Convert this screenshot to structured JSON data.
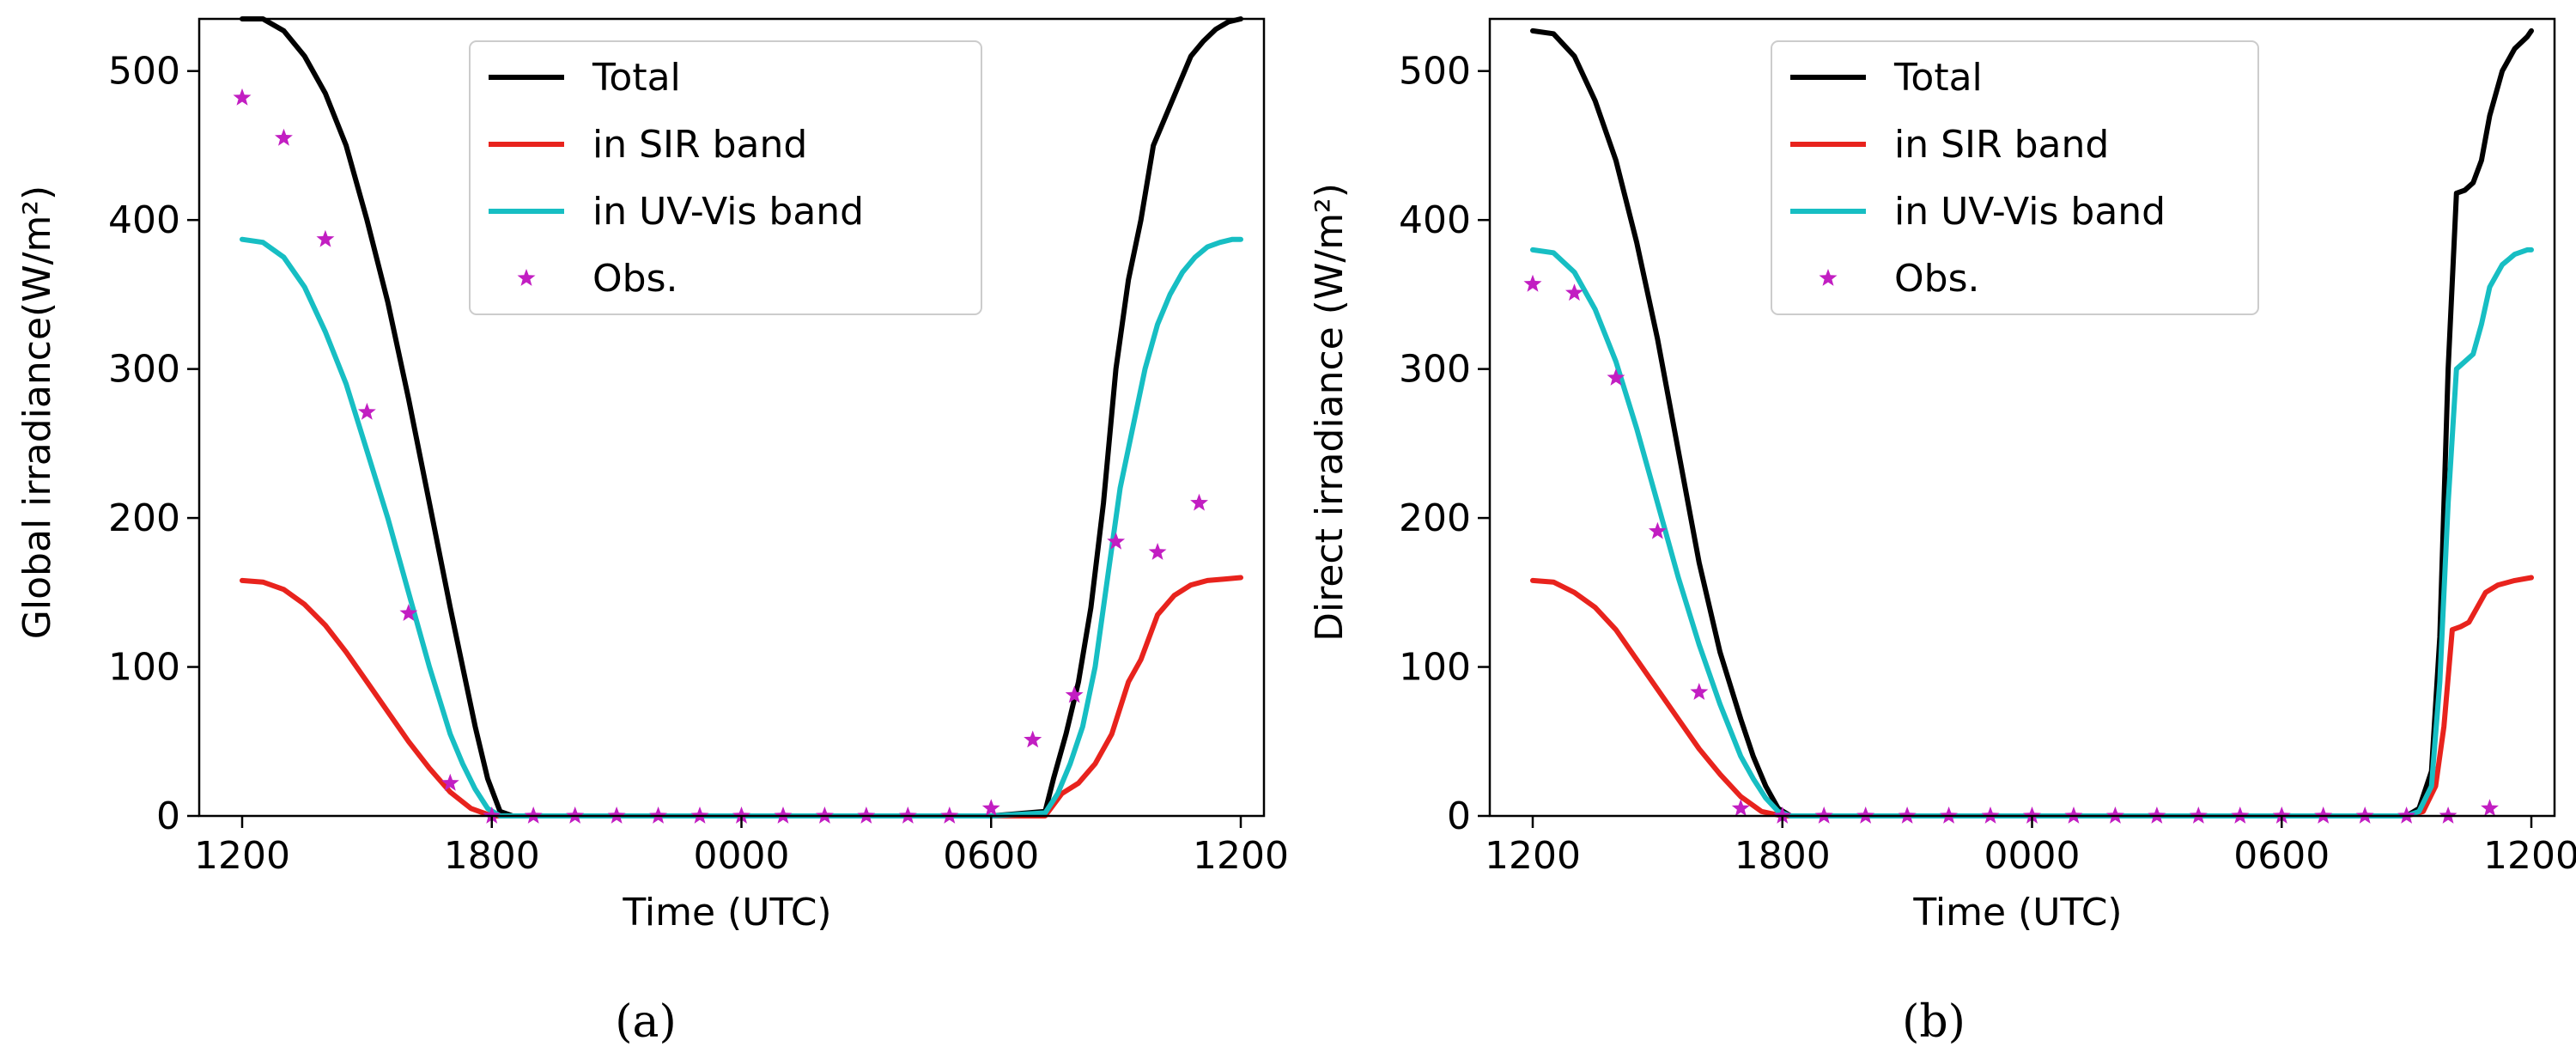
{
  "chart_data": [
    {
      "type": "line",
      "panel": "a",
      "panel_label_text": "(a)",
      "xlabel": "Time (UTC)",
      "ylabel": "Global irradiance(W/m²)",
      "xlim": [
        0,
        24
      ],
      "ylim": [
        0,
        535
      ],
      "xticks": [
        {
          "pos": 0,
          "label": "1200"
        },
        {
          "pos": 6,
          "label": "1800"
        },
        {
          "pos": 12,
          "label": "0000"
        },
        {
          "pos": 18,
          "label": "0600"
        },
        {
          "pos": 24,
          "label": "1200"
        }
      ],
      "yticks": [
        0,
        100,
        200,
        300,
        400,
        500
      ],
      "series": [
        {
          "name": "Total",
          "color": "#000000",
          "kind": "line",
          "x": [
            0,
            0.5,
            1,
            1.5,
            2,
            2.5,
            3,
            3.5,
            4,
            4.5,
            5,
            5.3,
            5.6,
            5.9,
            6.2,
            6.5,
            12,
            18,
            19.3,
            19.5,
            19.8,
            20.1,
            20.4,
            20.7,
            21.0,
            21.3,
            21.6,
            21.9,
            22.2,
            22.5,
            22.8,
            23.1,
            23.4,
            23.7,
            24
          ],
          "values": [
            535,
            535,
            527,
            510,
            485,
            450,
            400,
            345,
            280,
            210,
            140,
            100,
            60,
            25,
            3,
            0,
            0,
            0,
            3,
            25,
            55,
            90,
            140,
            210,
            300,
            360,
            400,
            450,
            470,
            490,
            510,
            520,
            528,
            533,
            535
          ]
        },
        {
          "name": "in SIR band",
          "color": "#e8231d",
          "kind": "line",
          "x": [
            0,
            0.5,
            1,
            1.5,
            2,
            2.5,
            3,
            3.5,
            4,
            4.5,
            5,
            5.5,
            6,
            6.3,
            12,
            18,
            19.3,
            19.7,
            20.1,
            20.5,
            20.9,
            21.3,
            21.6,
            22.0,
            22.4,
            22.8,
            23.2,
            23.6,
            24
          ],
          "values": [
            158,
            157,
            152,
            142,
            128,
            110,
            90,
            70,
            50,
            32,
            16,
            5,
            0,
            0,
            0,
            0,
            0,
            15,
            22,
            35,
            55,
            90,
            105,
            135,
            148,
            155,
            158,
            159,
            160
          ]
        },
        {
          "name": "in UV-Vis band",
          "color": "#17bec3",
          "kind": "line",
          "x": [
            0,
            0.5,
            1,
            1.5,
            2,
            2.5,
            3,
            3.5,
            4,
            4.5,
            5,
            5.3,
            5.6,
            5.9,
            6.2,
            6.5,
            12,
            18,
            19.3,
            19.6,
            19.9,
            20.2,
            20.5,
            20.8,
            21.1,
            21.4,
            21.7,
            22.0,
            22.3,
            22.6,
            22.9,
            23.2,
            23.5,
            23.8,
            24
          ],
          "values": [
            387,
            385,
            375,
            355,
            325,
            290,
            245,
            200,
            150,
            100,
            55,
            35,
            18,
            5,
            0,
            0,
            0,
            0,
            2,
            15,
            35,
            60,
            100,
            160,
            220,
            260,
            300,
            330,
            350,
            365,
            375,
            382,
            385,
            387,
            387
          ]
        },
        {
          "name": "Obs.",
          "color": "#c21ec2",
          "kind": "scatter",
          "x": [
            0,
            1,
            2,
            3,
            4,
            5,
            6,
            7,
            8,
            9,
            10,
            11,
            12,
            13,
            14,
            15,
            16,
            17,
            18,
            19,
            20,
            21,
            22,
            23
          ],
          "values": [
            482,
            455,
            387,
            271,
            136,
            22,
            0,
            0,
            0,
            0,
            0,
            0,
            0,
            0,
            0,
            0,
            0,
            0,
            5,
            51,
            81,
            184,
            177,
            210
          ]
        }
      ]
    },
    {
      "type": "line",
      "panel": "b",
      "panel_label_text": "(b)",
      "xlabel": "Time (UTC)",
      "ylabel": "Direct irradiance (W/m²)",
      "xlim": [
        0,
        24
      ],
      "ylim": [
        0,
        535
      ],
      "xticks": [
        {
          "pos": 0,
          "label": "1200"
        },
        {
          "pos": 6,
          "label": "1800"
        },
        {
          "pos": 12,
          "label": "0000"
        },
        {
          "pos": 18,
          "label": "0600"
        },
        {
          "pos": 24,
          "label": "1200"
        }
      ],
      "yticks": [
        0,
        100,
        200,
        300,
        400,
        500
      ],
      "series": [
        {
          "name": "Total",
          "color": "#000000",
          "kind": "line",
          "x": [
            0,
            0.5,
            1,
            1.5,
            2,
            2.5,
            3,
            3.5,
            4,
            4.5,
            5,
            5.3,
            5.6,
            5.9,
            6.2,
            6.5,
            12,
            21.0,
            21.3,
            21.6,
            21.8,
            22.0,
            22.2,
            22.4,
            22.6,
            22.8,
            23.0,
            23.3,
            23.6,
            23.9,
            24
          ],
          "values": [
            527,
            525,
            510,
            480,
            440,
            385,
            320,
            245,
            170,
            110,
            65,
            40,
            20,
            5,
            0,
            0,
            0,
            0,
            5,
            30,
            120,
            300,
            418,
            420,
            425,
            440,
            470,
            500,
            515,
            523,
            527
          ]
        },
        {
          "name": "in SIR band",
          "color": "#e8231d",
          "kind": "line",
          "x": [
            0,
            0.5,
            1,
            1.5,
            2,
            2.5,
            3,
            3.5,
            4,
            4.5,
            5,
            5.5,
            6,
            6.3,
            12,
            21.0,
            21.4,
            21.7,
            21.9,
            22.1,
            22.3,
            22.5,
            22.7,
            22.9,
            23.2,
            23.6,
            24
          ],
          "values": [
            158,
            157,
            150,
            140,
            125,
            105,
            85,
            65,
            45,
            28,
            13,
            3,
            0,
            0,
            0,
            0,
            3,
            20,
            60,
            125,
            127,
            130,
            140,
            150,
            155,
            158,
            160
          ]
        },
        {
          "name": "in UV-Vis band",
          "color": "#17bec3",
          "kind": "line",
          "x": [
            0,
            0.5,
            1,
            1.5,
            2,
            2.5,
            3,
            3.5,
            4,
            4.5,
            5,
            5.3,
            5.6,
            5.9,
            6.2,
            6.5,
            12,
            21.0,
            21.3,
            21.6,
            21.8,
            22.0,
            22.2,
            22.4,
            22.6,
            22.8,
            23.0,
            23.3,
            23.6,
            23.9,
            24
          ],
          "values": [
            380,
            378,
            365,
            340,
            305,
            260,
            210,
            160,
            115,
            75,
            40,
            25,
            12,
            3,
            0,
            0,
            0,
            0,
            3,
            20,
            90,
            210,
            300,
            305,
            310,
            330,
            355,
            370,
            377,
            380,
            380
          ]
        },
        {
          "name": "Obs.",
          "color": "#c21ec2",
          "kind": "scatter",
          "x": [
            0,
            1,
            2,
            3,
            4,
            5,
            6,
            7,
            8,
            9,
            10,
            11,
            12,
            13,
            14,
            15,
            16,
            17,
            18,
            19,
            20,
            21,
            22,
            23
          ],
          "values": [
            357,
            351,
            294,
            191,
            83,
            5,
            0,
            0,
            0,
            0,
            0,
            0,
            0,
            0,
            0,
            0,
            0,
            0,
            0,
            0,
            0,
            0,
            0,
            5
          ]
        }
      ]
    }
  ]
}
